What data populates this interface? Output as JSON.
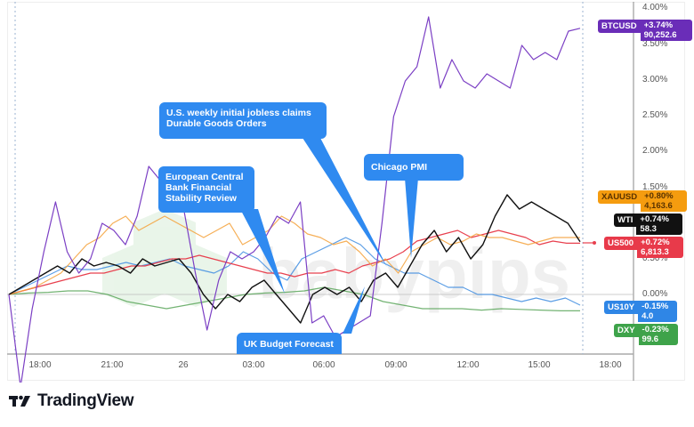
{
  "chart_data": {
    "type": "line",
    "title": "",
    "xlabel": "",
    "ylabel": "Percent change",
    "y_ticks": [
      "4.00%",
      "3.50%",
      "3.00%",
      "2.50%",
      "2.00%",
      "1.50%",
      "0.50%",
      "0.00%"
    ],
    "x_ticks": [
      "18:00",
      "21:00",
      "26",
      "03:00",
      "06:00",
      "09:00",
      "12:00",
      "15:00",
      "18:00"
    ],
    "ylim": [
      -0.8,
      4.1
    ],
    "grid": false,
    "legend_position": "right-axis tags",
    "series": [
      {
        "name": "BTCUSD",
        "color": "#7b3fc4",
        "last_change": "+3.74%",
        "last_price": "90,252.6",
        "values": [
          0.0,
          -1.3,
          -0.2,
          0.6,
          1.3,
          0.6,
          0.3,
          0.5,
          1.0,
          0.9,
          0.7,
          1.1,
          1.8,
          1.6,
          1.5,
          1.2,
          0.3,
          -0.5,
          0.2,
          0.6,
          0.5,
          0.6,
          0.8,
          1.1,
          1.0,
          1.3,
          -0.4,
          -0.3,
          -0.6,
          -0.5,
          -0.4,
          -0.3,
          1.0,
          2.5,
          3.0,
          3.2,
          3.9,
          2.9,
          3.3,
          3.0,
          2.9,
          3.1,
          3.0,
          2.9,
          3.5,
          3.3,
          3.4,
          3.3,
          3.7,
          3.74
        ]
      },
      {
        "name": "XAUUSD",
        "color": "#f5a13a",
        "last_change": "+0.80%",
        "last_price": "4,163.6",
        "values": [
          0.0,
          0.05,
          0.1,
          0.2,
          0.3,
          0.5,
          0.7,
          0.8,
          1.0,
          1.1,
          0.9,
          1.0,
          1.1,
          1.0,
          0.9,
          0.8,
          0.9,
          1.0,
          0.7,
          0.8,
          0.9,
          1.1,
          1.0,
          0.85,
          0.8,
          0.7,
          0.75,
          0.6,
          0.4,
          0.5,
          0.3,
          0.6,
          0.7,
          0.8,
          0.7,
          0.75,
          0.85,
          0.8,
          0.8,
          0.75,
          0.7,
          0.75,
          0.8,
          0.8,
          0.8
        ]
      },
      {
        "name": "WTI",
        "color": "#111111",
        "last_change": "+0.74%",
        "last_price": "58.3",
        "values": [
          0.0,
          0.1,
          0.2,
          0.3,
          0.4,
          0.3,
          0.5,
          0.4,
          0.45,
          0.4,
          0.3,
          0.5,
          0.4,
          0.45,
          0.5,
          0.3,
          0.0,
          -0.2,
          0.0,
          -0.1,
          0.1,
          0.2,
          0.0,
          -0.2,
          -0.4,
          0.0,
          0.1,
          0.0,
          0.1,
          -0.1,
          0.2,
          0.3,
          0.1,
          0.4,
          0.7,
          0.9,
          0.6,
          0.8,
          0.5,
          0.7,
          1.1,
          1.4,
          1.2,
          1.3,
          1.2,
          1.1,
          1.0,
          0.74
        ]
      },
      {
        "name": "US500",
        "color": "#e8404e",
        "last_change": "+0.72%",
        "last_price": "6,813.3",
        "values": [
          0.0,
          0.05,
          0.1,
          0.15,
          0.2,
          0.25,
          0.3,
          0.3,
          0.35,
          0.4,
          0.4,
          0.45,
          0.5,
          0.5,
          0.55,
          0.5,
          0.45,
          0.4,
          0.35,
          0.3,
          0.3,
          0.25,
          0.3,
          0.3,
          0.35,
          0.3,
          0.4,
          0.45,
          0.5,
          0.6,
          0.75,
          0.8,
          0.85,
          0.9,
          0.8,
          0.85,
          0.9,
          0.85,
          0.8,
          0.7,
          0.75,
          0.72,
          0.72
        ]
      },
      {
        "name": "US10Y",
        "color": "#3f8de0",
        "last_change": "-0.15%",
        "last_price": "4.0",
        "values": [
          0.0,
          0.1,
          0.2,
          0.3,
          0.4,
          0.35,
          0.35,
          0.4,
          0.45,
          0.4,
          0.45,
          0.5,
          0.4,
          0.35,
          0.3,
          0.4,
          0.6,
          0.5,
          0.3,
          0.2,
          0.5,
          0.6,
          0.7,
          0.8,
          0.7,
          0.5,
          0.4,
          0.3,
          0.3,
          0.2,
          0.1,
          0.1,
          0.0,
          0.0,
          -0.05,
          -0.1,
          -0.05,
          -0.1,
          -0.05,
          -0.15
        ]
      },
      {
        "name": "DXY",
        "color": "#5aa65a",
        "last_change": "-0.23%",
        "last_price": "99.6",
        "values": [
          0.0,
          0.02,
          0.03,
          0.05,
          0.05,
          0.0,
          -0.1,
          -0.15,
          -0.2,
          -0.15,
          -0.1,
          -0.05,
          0.0,
          0.02,
          0.03,
          0.05,
          0.1,
          0.05,
          0.0,
          -0.1,
          -0.15,
          -0.2,
          -0.2,
          -0.2,
          -0.22,
          -0.2,
          -0.21,
          -0.22,
          -0.23,
          -0.23
        ]
      }
    ],
    "annotations": [
      {
        "text": "U.S. weekly initial jobless claims\nDurable Goods Orders"
      },
      {
        "text": "European Central\nBank Financial\nStability Review"
      },
      {
        "text": "Chicago PMI"
      },
      {
        "text": "UK Budget Forecast"
      }
    ]
  },
  "axis": {
    "y": [
      "4.00%",
      "3.50%",
      "3.00%",
      "2.50%",
      "2.00%",
      "1.50%",
      "0.50%",
      "0.00%"
    ],
    "x": [
      "18:00",
      "21:00",
      "26",
      "03:00",
      "06:00",
      "09:00",
      "12:00",
      "15:00",
      "18:00"
    ]
  },
  "tags": {
    "btc": {
      "symbol": "BTCUSD",
      "change": "+3.74%",
      "price": "90,252.6",
      "color": "#6a2db8"
    },
    "xau": {
      "symbol": "XAUUSD",
      "change": "+0.80%",
      "price": "4,163.6",
      "color": "#f59c0f"
    },
    "wti": {
      "symbol": "WTI",
      "change": "+0.74%",
      "price": "58.3",
      "color": "#111111"
    },
    "spx": {
      "symbol": "US500",
      "change": "+0.72%",
      "price": "6,813.3",
      "color": "#e83a4a"
    },
    "us10": {
      "symbol": "US10Y",
      "change": "-0.15%",
      "price": "4.0",
      "color": "#2f86e6"
    },
    "dxy": {
      "symbol": "DXY",
      "change": "-0.23%",
      "price": "99.6",
      "color": "#3ea34a"
    }
  },
  "callouts": {
    "jobless_line1": "U.S. weekly initial jobless claims",
    "jobless_line2": "Durable Goods Orders",
    "ecb_line1": "European Central",
    "ecb_line2": "Bank Financial",
    "ecb_line3": "Stability Review",
    "chicago": "Chicago PMI",
    "uk": "UK Budget Forecast"
  },
  "watermark": "babypips",
  "footer": {
    "brand": "TradingView"
  }
}
